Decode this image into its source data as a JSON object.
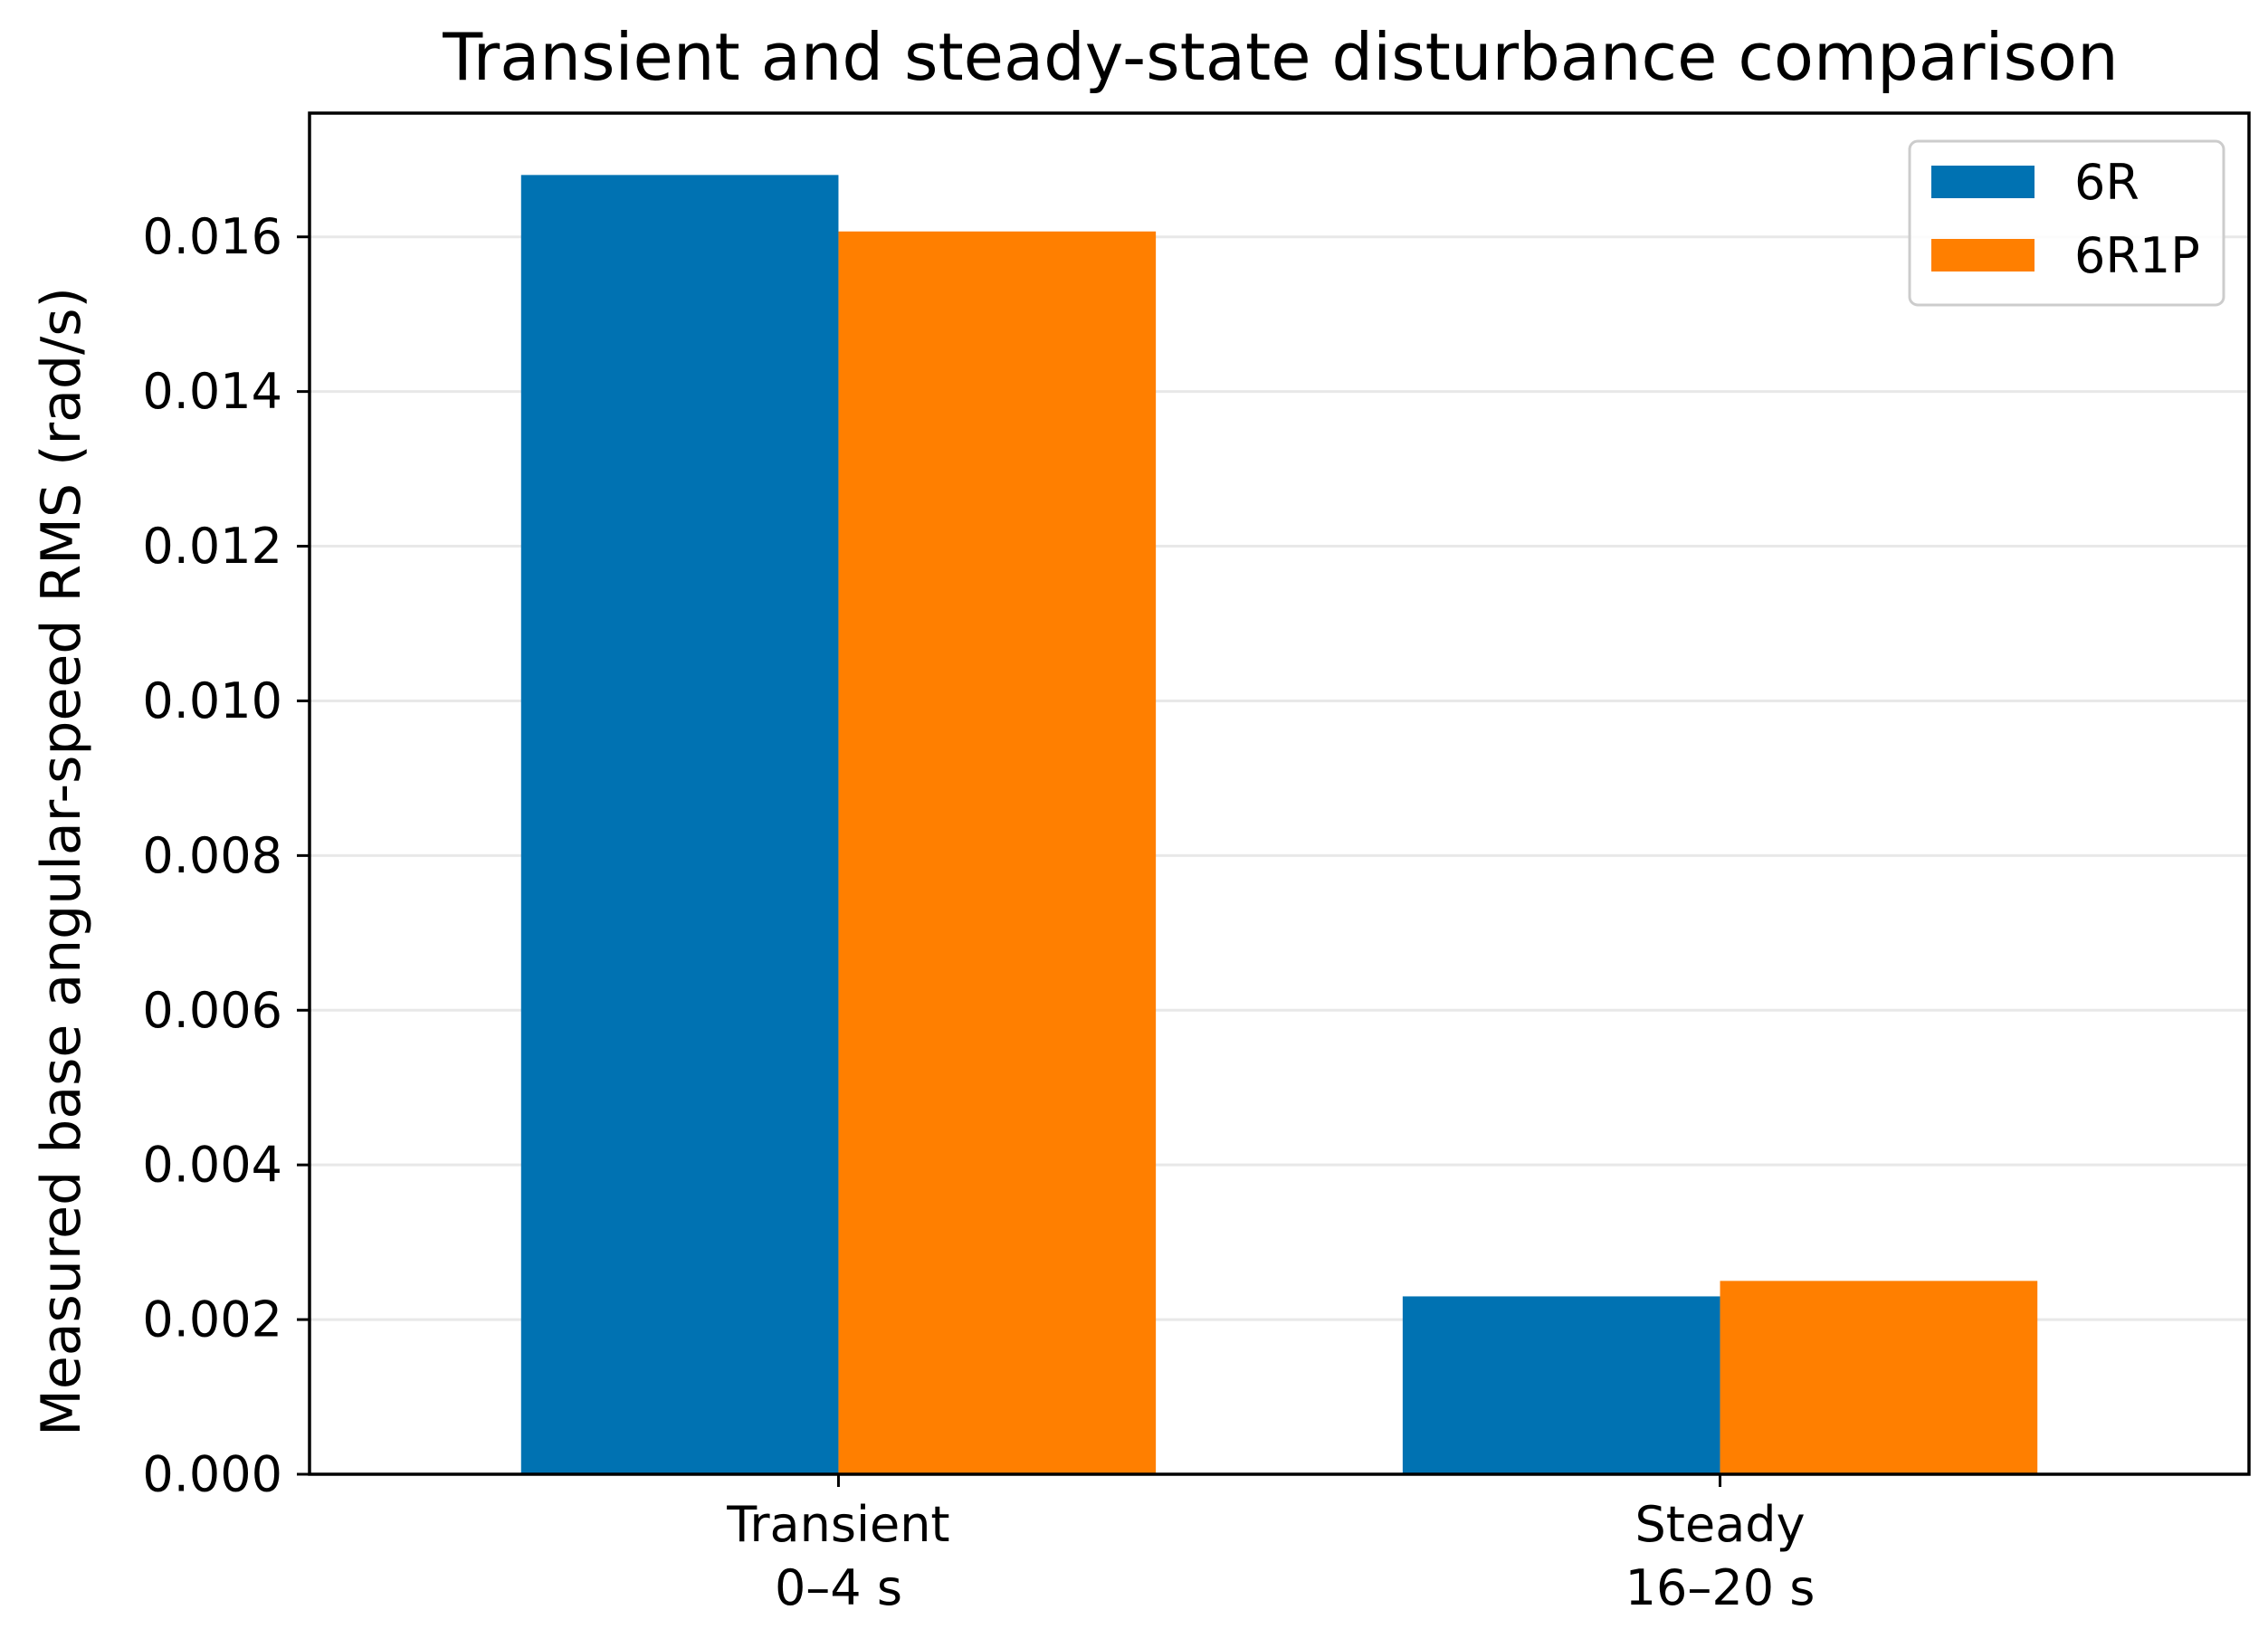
{
  "chart_data": {
    "type": "bar",
    "title": "Transient and steady-state disturbance comparison",
    "xlabel": "",
    "ylabel": "Measured base angular-speed RMS (rad/s)",
    "ylim": [
      0,
      0.0176
    ],
    "yticks": [
      0.0,
      0.002,
      0.004,
      0.006,
      0.008,
      0.01,
      0.012,
      0.014,
      0.016
    ],
    "ytick_labels": [
      "0.000",
      "0.002",
      "0.004",
      "0.006",
      "0.008",
      "0.010",
      "0.012",
      "0.014",
      "0.016"
    ],
    "categories": [
      [
        "Transient",
        "0–4 s"
      ],
      [
        "Steady",
        "16–20 s"
      ]
    ],
    "series": [
      {
        "name": "6R",
        "color": "#0072b2",
        "values": [
          0.0168,
          0.0023
        ]
      },
      {
        "name": "6R1P",
        "color": "#ff7f00",
        "values": [
          0.01607,
          0.0025
        ]
      }
    ],
    "grid": "y",
    "legend_position": "top-right"
  }
}
